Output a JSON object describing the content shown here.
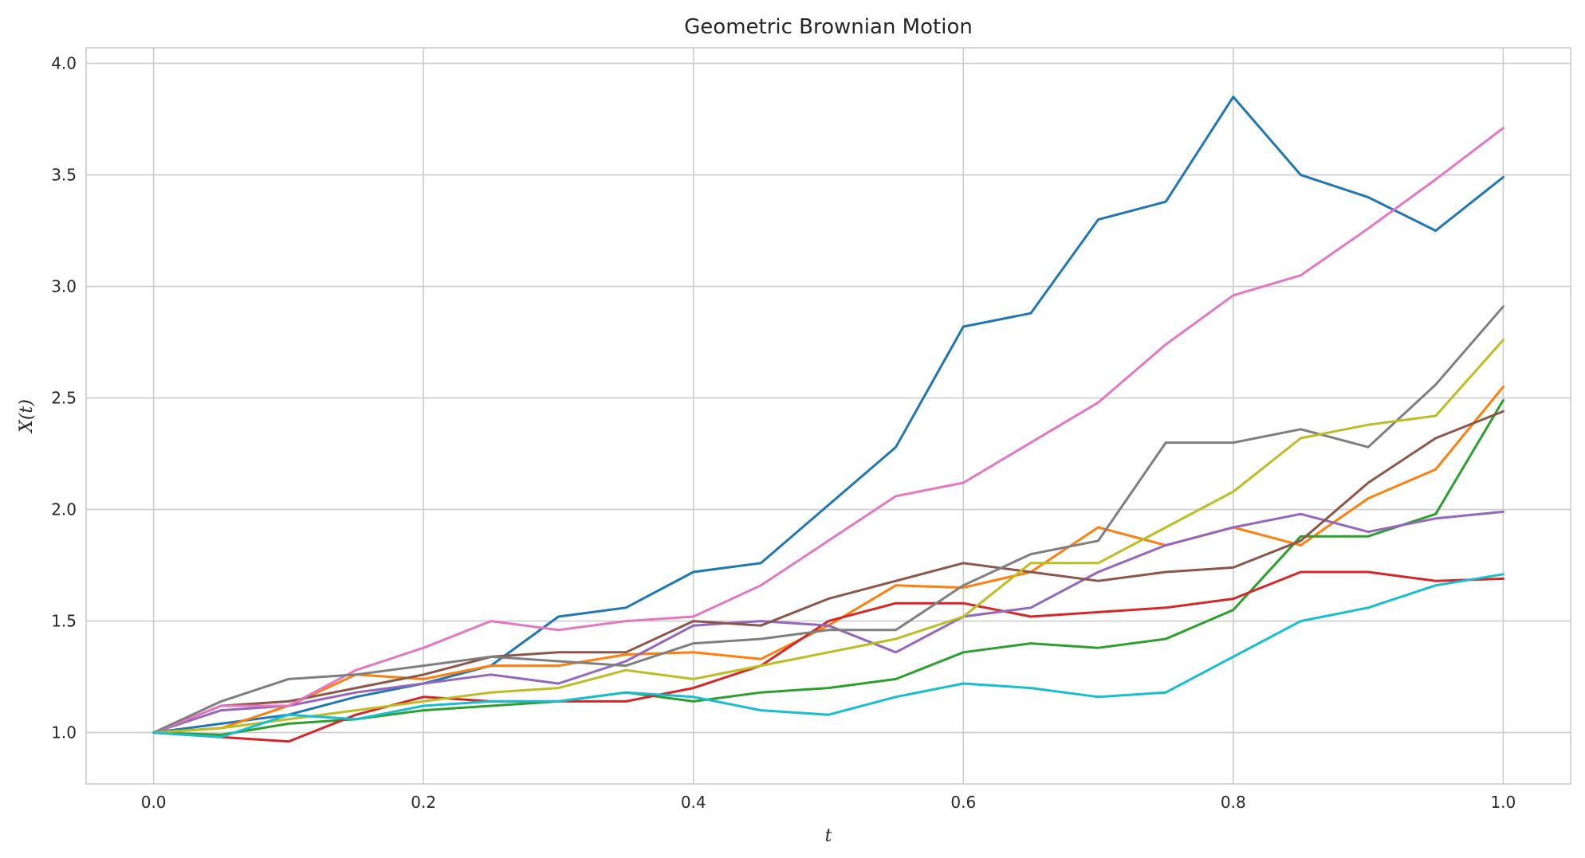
{
  "chart_data": {
    "type": "line",
    "title": "Geometric Brownian Motion",
    "xlabel": "t",
    "ylabel": "X(t)",
    "xlim": [
      -0.05,
      1.05
    ],
    "ylim": [
      0.77,
      4.07
    ],
    "xticks": [
      0.0,
      0.2,
      0.4,
      0.6,
      0.8,
      1.0
    ],
    "xtick_labels": [
      "0.0",
      "0.2",
      "0.4",
      "0.6",
      "0.8",
      "1.0"
    ],
    "yticks": [
      1.0,
      1.5,
      2.0,
      2.5,
      3.0,
      3.5,
      4.0
    ],
    "ytick_labels": [
      "1.0",
      "1.5",
      "2.0",
      "2.5",
      "3.0",
      "3.5",
      "4.0"
    ],
    "grid": true,
    "legend": "none",
    "x": [
      0.0,
      0.05,
      0.1,
      0.15,
      0.2,
      0.25,
      0.3,
      0.35,
      0.4,
      0.45,
      0.5,
      0.55,
      0.6,
      0.65,
      0.7,
      0.75,
      0.8,
      0.85,
      0.9,
      0.95,
      1.0
    ],
    "series": [
      {
        "color": "#1f77b4",
        "values": [
          1.0,
          1.04,
          1.08,
          1.16,
          1.22,
          1.3,
          1.52,
          1.56,
          1.72,
          1.76,
          2.02,
          2.28,
          2.82,
          2.88,
          3.3,
          3.38,
          3.85,
          3.5,
          3.4,
          3.25,
          3.49
        ]
      },
      {
        "color": "#ff7f0e",
        "values": [
          1.0,
          1.02,
          1.12,
          1.26,
          1.24,
          1.3,
          1.3,
          1.35,
          1.36,
          1.33,
          1.48,
          1.66,
          1.65,
          1.72,
          1.92,
          1.84,
          1.92,
          1.84,
          2.05,
          2.18,
          2.55
        ]
      },
      {
        "color": "#2ca02c",
        "values": [
          1.0,
          0.99,
          1.04,
          1.06,
          1.1,
          1.12,
          1.14,
          1.18,
          1.14,
          1.18,
          1.2,
          1.24,
          1.36,
          1.4,
          1.38,
          1.42,
          1.55,
          1.88,
          1.88,
          1.98,
          2.49
        ]
      },
      {
        "color": "#d62728",
        "values": [
          1.0,
          0.98,
          0.96,
          1.08,
          1.16,
          1.14,
          1.14,
          1.14,
          1.2,
          1.3,
          1.5,
          1.58,
          1.58,
          1.52,
          1.54,
          1.56,
          1.6,
          1.72,
          1.72,
          1.68,
          1.69
        ]
      },
      {
        "color": "#9467bd",
        "values": [
          1.0,
          1.1,
          1.12,
          1.18,
          1.22,
          1.26,
          1.22,
          1.32,
          1.48,
          1.5,
          1.48,
          1.36,
          1.52,
          1.56,
          1.72,
          1.84,
          1.92,
          1.98,
          1.9,
          1.96,
          1.99
        ]
      },
      {
        "color": "#8c564b",
        "values": [
          1.0,
          1.12,
          1.14,
          1.2,
          1.26,
          1.34,
          1.36,
          1.36,
          1.5,
          1.48,
          1.6,
          1.68,
          1.76,
          1.72,
          1.68,
          1.72,
          1.74,
          1.86,
          2.12,
          2.32,
          2.44
        ]
      },
      {
        "color": "#e377c2",
        "values": [
          1.0,
          1.12,
          1.12,
          1.28,
          1.38,
          1.5,
          1.46,
          1.5,
          1.52,
          1.66,
          1.86,
          2.06,
          2.12,
          2.3,
          2.48,
          2.74,
          2.96,
          3.05,
          3.26,
          3.48,
          3.71
        ]
      },
      {
        "color": "#7f7f7f",
        "values": [
          1.0,
          1.14,
          1.24,
          1.26,
          1.3,
          1.34,
          1.32,
          1.3,
          1.4,
          1.42,
          1.46,
          1.46,
          1.66,
          1.8,
          1.86,
          2.3,
          2.3,
          2.36,
          2.28,
          2.56,
          2.91
        ]
      },
      {
        "color": "#bcbd22",
        "values": [
          1.0,
          1.02,
          1.06,
          1.1,
          1.14,
          1.18,
          1.2,
          1.28,
          1.24,
          1.3,
          1.36,
          1.42,
          1.52,
          1.76,
          1.76,
          1.92,
          2.08,
          2.32,
          2.38,
          2.42,
          2.76
        ]
      },
      {
        "color": "#17becf",
        "values": [
          1.0,
          0.98,
          1.08,
          1.06,
          1.12,
          1.14,
          1.14,
          1.18,
          1.16,
          1.1,
          1.08,
          1.16,
          1.22,
          1.2,
          1.16,
          1.18,
          1.34,
          1.5,
          1.56,
          1.66,
          1.71
        ]
      }
    ]
  }
}
